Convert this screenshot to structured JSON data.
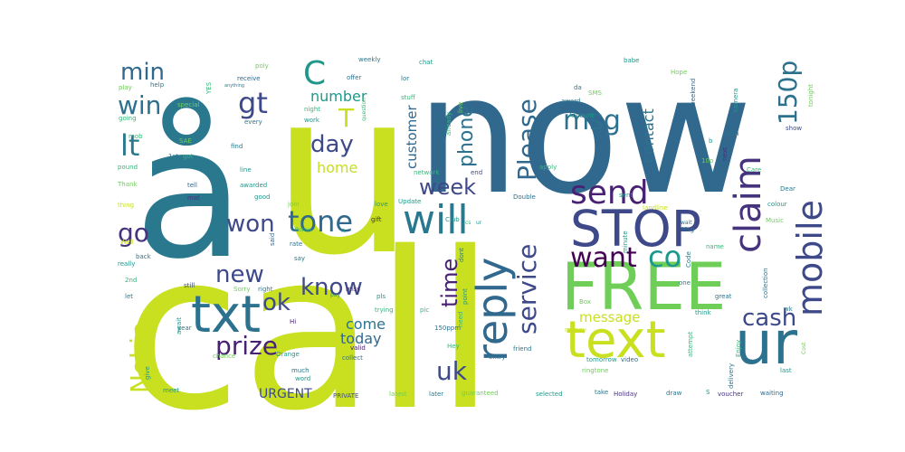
{
  "cloud": {
    "words": [
      {
        "text": "call",
        "color": "#c8e020"
      },
      {
        "text": "now",
        "color": "#31688e"
      },
      {
        "text": "u",
        "color": "#c8e020"
      },
      {
        "text": "å",
        "color": "#2a788e"
      },
      {
        "text": "FREE",
        "color": "#6ece58"
      },
      {
        "text": "text",
        "color": "#c8e020"
      },
      {
        "text": "ur",
        "color": "#2c728e"
      },
      {
        "text": "STOP",
        "color": "#3e4989"
      },
      {
        "text": "txt",
        "color": "#2c728e"
      },
      {
        "text": "mobile",
        "color": "#3e4989"
      },
      {
        "text": "claim",
        "color": "#46337e"
      },
      {
        "text": "reply",
        "color": "#31688e"
      },
      {
        "text": "will",
        "color": "#2a788e"
      },
      {
        "text": "send",
        "color": "#482173"
      },
      {
        "text": "want",
        "color": "#440154"
      },
      {
        "text": "co",
        "color": "#1f988b"
      },
      {
        "text": "service",
        "color": "#3e4989"
      },
      {
        "text": "tone",
        "color": "#31688e"
      },
      {
        "text": "won",
        "color": "#3e4989"
      },
      {
        "text": "know",
        "color": "#3e4989"
      },
      {
        "text": "new",
        "color": "#3e4989"
      },
      {
        "text": "prize",
        "color": "#482173"
      },
      {
        "text": "ok",
        "color": "#3e4989"
      },
      {
        "text": "C",
        "color": "#1f988b"
      },
      {
        "text": "T",
        "color": "#c8e020"
      },
      {
        "text": "gt",
        "color": "#3e4989"
      },
      {
        "text": "win",
        "color": "#2c728e"
      },
      {
        "text": "min",
        "color": "#31688e"
      },
      {
        "text": "lt",
        "color": "#2a788e"
      },
      {
        "text": "go",
        "color": "#46337e"
      },
      {
        "text": "day",
        "color": "#3e4989"
      },
      {
        "text": "week",
        "color": "#3e4989"
      },
      {
        "text": "msg",
        "color": "#2c728e"
      },
      {
        "text": "Please",
        "color": "#31688e"
      },
      {
        "text": "150p",
        "color": "#2c728e"
      },
      {
        "text": "phone",
        "color": "#2c728e"
      },
      {
        "text": "time",
        "color": "#482173"
      },
      {
        "text": "cash",
        "color": "#3e4989"
      },
      {
        "text": "uk",
        "color": "#3e4989"
      },
      {
        "text": "Nokia",
        "color": "#c8e020"
      },
      {
        "text": "customer",
        "color": "#31688e"
      },
      {
        "text": "number",
        "color": "#1f988b"
      },
      {
        "text": "home",
        "color": "#c8e020"
      },
      {
        "text": "contact",
        "color": "#2c728e"
      },
      {
        "text": "message",
        "color": "#c8e020"
      },
      {
        "text": "come",
        "color": "#2c728e"
      },
      {
        "text": "today",
        "color": "#31688e"
      },
      {
        "text": "URGENT",
        "color": "#3e4989"
      },
      {
        "text": "mob",
        "color": "#35b779"
      },
      {
        "text": "sent",
        "color": "#1f988b"
      },
      {
        "text": "Hope",
        "color": "#6ece58"
      },
      {
        "text": "babe",
        "color": "#1f988b"
      },
      {
        "text": "weekly",
        "color": "#2a788e"
      },
      {
        "text": "chat",
        "color": "#1f988b"
      },
      {
        "text": "poly",
        "color": "#6ece58"
      },
      {
        "text": "offer",
        "color": "#2c728e"
      },
      {
        "text": "receive",
        "color": "#31688e"
      },
      {
        "text": "play",
        "color": "#6ece58"
      },
      {
        "text": "help",
        "color": "#2a788e"
      },
      {
        "text": "going",
        "color": "#35b779"
      },
      {
        "text": "special",
        "color": "#6ece58"
      },
      {
        "text": "every",
        "color": "#2a788e"
      },
      {
        "text": "night",
        "color": "#35b779"
      },
      {
        "text": "work",
        "color": "#1f988b"
      },
      {
        "text": "live",
        "color": "#6ece58"
      },
      {
        "text": "already",
        "color": "#35b779"
      },
      {
        "text": "award",
        "color": "#2a788e"
      },
      {
        "text": "Account",
        "color": "#1f988b"
      },
      {
        "text": "SMS",
        "color": "#6ece58"
      },
      {
        "text": "da",
        "color": "#2a788e"
      },
      {
        "text": "camera",
        "color": "#1f988b"
      },
      {
        "text": "Yeah",
        "color": "#2c728e"
      },
      {
        "text": "show",
        "color": "#3e4989"
      },
      {
        "text": "Care",
        "color": "#35b779"
      },
      {
        "text": "10p",
        "color": "#6ece58"
      },
      {
        "text": "b",
        "color": "#1f988b"
      },
      {
        "text": "next",
        "color": "#46337e"
      },
      {
        "text": "1st",
        "color": "#2a788e"
      },
      {
        "text": "got",
        "color": "#35b779"
      },
      {
        "text": "pound",
        "color": "#35b779"
      },
      {
        "text": "find",
        "color": "#2a788e"
      },
      {
        "text": "Thank",
        "color": "#6ece58"
      },
      {
        "text": "tell",
        "color": "#31688e"
      },
      {
        "text": "line",
        "color": "#1f988b"
      },
      {
        "text": "network",
        "color": "#35b779"
      },
      {
        "text": "end",
        "color": "#3e4989"
      },
      {
        "text": "apply",
        "color": "#35b779"
      },
      {
        "text": "awarded",
        "color": "#1f988b"
      },
      {
        "text": "mat",
        "color": "#46337e"
      },
      {
        "text": "thing",
        "color": "#c8e020"
      },
      {
        "text": "good",
        "color": "#1f988b"
      },
      {
        "text": "join",
        "color": "#6ece58"
      },
      {
        "text": "Update",
        "color": "#1f988b"
      },
      {
        "text": "Double",
        "color": "#2c728e"
      },
      {
        "text": "landline",
        "color": "#c8e020"
      },
      {
        "text": "colour",
        "color": "#1f988b"
      },
      {
        "text": "Dear",
        "color": "#2a788e"
      },
      {
        "text": "love",
        "color": "#1f988b"
      },
      {
        "text": "gift",
        "color": "#482173"
      },
      {
        "text": "Well",
        "color": "#c8e020"
      },
      {
        "text": "rate",
        "color": "#2c728e"
      },
      {
        "text": "say",
        "color": "#2a788e"
      },
      {
        "text": "minute",
        "color": "#1f988b"
      },
      {
        "text": "name",
        "color": "#35b779"
      },
      {
        "text": "Code",
        "color": "#2a788e"
      },
      {
        "text": "really",
        "color": "#1f988b"
      },
      {
        "text": "back",
        "color": "#2a788e"
      },
      {
        "text": "2nd",
        "color": "#35b779"
      },
      {
        "text": "let",
        "color": "#2a788e"
      },
      {
        "text": "still",
        "color": "#3e4989"
      },
      {
        "text": "Sorry",
        "color": "#6ece58"
      },
      {
        "text": "right",
        "color": "#2a788e"
      },
      {
        "text": "miss",
        "color": "#482173"
      },
      {
        "text": "pls",
        "color": "#1f988b"
      },
      {
        "text": "trying",
        "color": "#35b779"
      },
      {
        "text": "point",
        "color": "#1f988b"
      },
      {
        "text": "one",
        "color": "#2a788e"
      },
      {
        "text": "great",
        "color": "#2c728e"
      },
      {
        "text": "Enjoy",
        "color": "#35b779"
      },
      {
        "text": "delivery",
        "color": "#2c728e"
      },
      {
        "text": "last",
        "color": "#1f988b"
      },
      {
        "text": "Hi",
        "color": "#482173"
      },
      {
        "text": "year",
        "color": "#2a788e"
      },
      {
        "text": "pic",
        "color": "#35b779"
      },
      {
        "text": "150ppm",
        "color": "#2c728e"
      },
      {
        "text": "think",
        "color": "#1f988b"
      },
      {
        "text": "attempt",
        "color": "#35b779"
      },
      {
        "text": "chance",
        "color": "#6ece58"
      },
      {
        "text": "Orange",
        "color": "#1f988b"
      },
      {
        "text": "valid",
        "color": "#482173"
      },
      {
        "text": "collect",
        "color": "#2c728e"
      },
      {
        "text": "Hey",
        "color": "#35b779"
      },
      {
        "text": "friend",
        "color": "#2a788e"
      },
      {
        "text": "money",
        "color": "#c8e020"
      },
      {
        "text": "entry",
        "color": "#2a788e"
      },
      {
        "text": "tomorrow",
        "color": "#1f988b"
      },
      {
        "text": "video",
        "color": "#31688e"
      },
      {
        "text": "ringtone",
        "color": "#6ece58"
      },
      {
        "text": "much",
        "color": "#2a788e"
      },
      {
        "text": "word",
        "color": "#1f988b"
      },
      {
        "text": "meet",
        "color": "#1f988b"
      },
      {
        "text": "PRIVATE",
        "color": "#3e4989"
      },
      {
        "text": "latest",
        "color": "#6ece58"
      },
      {
        "text": "later",
        "color": "#2a788e"
      },
      {
        "text": "guaranteed",
        "color": "#6ece58"
      },
      {
        "text": "selected",
        "color": "#1f988b"
      },
      {
        "text": "take",
        "color": "#2a788e"
      },
      {
        "text": "Holiday",
        "color": "#46337e"
      },
      {
        "text": "draw",
        "color": "#2a788e"
      },
      {
        "text": "S",
        "color": "#1f988b"
      },
      {
        "text": "voucher",
        "color": "#46337e"
      },
      {
        "text": "waiting",
        "color": "#31688e"
      },
      {
        "text": "give",
        "color": "#1f988b"
      },
      {
        "text": "lor",
        "color": "#2a788e"
      },
      {
        "text": "YES",
        "color": "#35b779"
      },
      {
        "text": "anything",
        "color": "#2a788e"
      },
      {
        "text": "weekend",
        "color": "#31688e"
      },
      {
        "text": "tonight",
        "color": "#6ece58"
      },
      {
        "text": "question",
        "color": "#35b779"
      },
      {
        "text": "stuff",
        "color": "#35b779"
      },
      {
        "text": "said",
        "color": "#31688e"
      },
      {
        "text": "await",
        "color": "#1f988b"
      },
      {
        "text": "Bonus",
        "color": "#35b779"
      },
      {
        "text": "n",
        "color": "#1f988b"
      },
      {
        "text": "wk",
        "color": "#2a788e"
      },
      {
        "text": "Cost",
        "color": "#6ece58"
      },
      {
        "text": "pay",
        "color": "#1f988b"
      },
      {
        "text": "dont",
        "color": "#2a788e"
      },
      {
        "text": "need",
        "color": "#35b779"
      },
      {
        "text": "collection",
        "color": "#2c728e"
      },
      {
        "text": "Box",
        "color": "#6ece58"
      },
      {
        "text": "SAE",
        "color": "#6ece58"
      },
      {
        "text": "Msg",
        "color": "#2a788e"
      },
      {
        "text": "Music",
        "color": "#6ece58"
      },
      {
        "text": "Club",
        "color": "#1f988b"
      },
      {
        "text": "cs",
        "color": "#35b779"
      },
      {
        "text": "ur",
        "color": "#1f988b"
      },
      {
        "text": "wait",
        "color": "#2a788e"
      }
    ]
  }
}
